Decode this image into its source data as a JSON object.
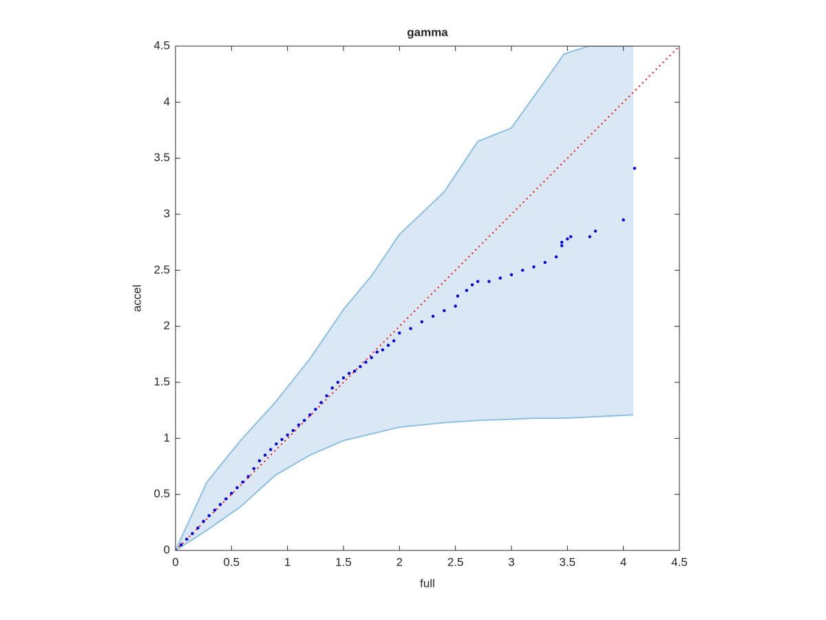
{
  "chart_data": {
    "type": "scatter",
    "title": "gamma",
    "xlabel": "full",
    "ylabel": "accel",
    "xlim": [
      0,
      4.5
    ],
    "ylim": [
      0,
      4.5
    ],
    "xticks": [
      0,
      0.5,
      1,
      1.5,
      2,
      2.5,
      3,
      3.5,
      4,
      4.5
    ],
    "yticks": [
      0,
      0.5,
      1,
      1.5,
      2,
      2.5,
      3,
      3.5,
      4,
      4.5
    ],
    "band": {
      "color": "#d9e8f4",
      "edge_color": "#8dbfe0",
      "x": [
        0,
        0.28,
        0.58,
        0.89,
        1.2,
        1.5,
        1.75,
        2.0,
        2.4,
        2.7,
        3.0,
        3.2,
        3.4,
        3.47,
        3.69,
        4.09
      ],
      "upper": [
        0,
        0.61,
        0.98,
        1.32,
        1.71,
        2.15,
        2.45,
        2.82,
        3.2,
        3.65,
        3.77,
        4.05,
        4.33,
        4.43,
        4.5,
        4.5
      ],
      "lower": [
        0,
        0.18,
        0.39,
        0.67,
        0.85,
        0.98,
        1.04,
        1.1,
        1.14,
        1.16,
        1.17,
        1.18,
        1.18,
        1.18,
        1.19,
        1.21
      ]
    },
    "reference_line": {
      "color": "#ff0000",
      "x": [
        0,
        4.5
      ],
      "y": [
        0,
        4.5
      ]
    },
    "points": {
      "color": "#0000e0",
      "x": [
        0,
        0.05,
        0.1,
        0.15,
        0.2,
        0.25,
        0.3,
        0.35,
        0.4,
        0.45,
        0.5,
        0.55,
        0.6,
        0.65,
        0.7,
        0.75,
        0.8,
        0.85,
        0.9,
        0.95,
        1.0,
        1.05,
        1.1,
        1.15,
        1.2,
        1.25,
        1.3,
        1.35,
        1.4,
        1.45,
        1.5,
        1.55,
        1.6,
        1.65,
        1.7,
        1.75,
        1.8,
        1.85,
        1.9,
        1.95,
        2.0,
        2.1,
        2.2,
        2.3,
        2.4,
        2.5,
        2.52,
        2.6,
        2.65,
        2.7,
        2.8,
        2.9,
        3.0,
        3.1,
        3.2,
        3.3,
        3.4,
        3.45,
        3.45,
        3.5,
        3.53,
        3.7,
        3.75,
        4.0,
        4.1
      ],
      "y": [
        0,
        0.05,
        0.1,
        0.15,
        0.2,
        0.26,
        0.31,
        0.36,
        0.41,
        0.46,
        0.51,
        0.56,
        0.61,
        0.66,
        0.73,
        0.8,
        0.85,
        0.9,
        0.95,
        0.99,
        1.03,
        1.07,
        1.12,
        1.16,
        1.21,
        1.26,
        1.32,
        1.38,
        1.45,
        1.5,
        1.54,
        1.58,
        1.6,
        1.64,
        1.68,
        1.72,
        1.77,
        1.79,
        1.83,
        1.87,
        1.94,
        1.98,
        2.04,
        2.09,
        2.14,
        2.18,
        2.27,
        2.32,
        2.37,
        2.4,
        2.4,
        2.43,
        2.46,
        2.5,
        2.53,
        2.57,
        2.62,
        2.72,
        2.75,
        2.78,
        2.8,
        2.8,
        2.85,
        2.95,
        3.41
      ]
    }
  }
}
